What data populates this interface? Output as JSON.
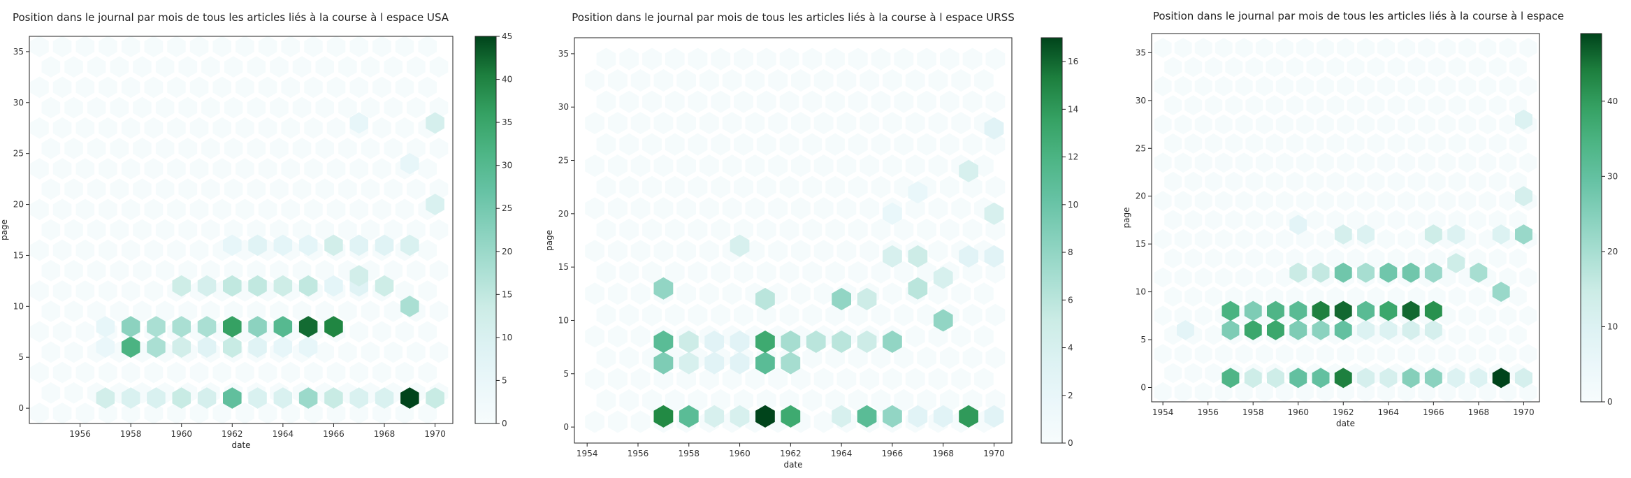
{
  "chart_data": [
    {
      "type": "heatmap",
      "title": "Position dans le journal par mois de tous les articles liés à la course à l espace USA",
      "xlabel": "date",
      "ylabel": "page",
      "xticks": [
        "1956",
        "1958",
        "1960",
        "1962",
        "1964",
        "1966",
        "1968",
        "1970"
      ],
      "yticks": [
        "0",
        "5",
        "10",
        "15",
        "20",
        "25",
        "30",
        "35"
      ],
      "xlim": [
        1954.0,
        1970.7
      ],
      "ylim": [
        -1.5,
        36.5
      ],
      "colorbar": {
        "ticks": [
          "0",
          "5",
          "10",
          "15",
          "20",
          "25",
          "30",
          "35",
          "40",
          "45"
        ],
        "min": 0,
        "max": 45
      },
      "cells": [
        [
          1969,
          1,
          45
        ],
        [
          1962,
          1,
          28
        ],
        [
          1965,
          1,
          20
        ],
        [
          1966,
          1,
          14
        ],
        [
          1960,
          1,
          14
        ],
        [
          1970,
          1,
          14
        ],
        [
          1957,
          1,
          12
        ],
        [
          1958,
          1,
          10
        ],
        [
          1959,
          1,
          10
        ],
        [
          1961,
          1,
          11
        ],
        [
          1963,
          1,
          10
        ],
        [
          1964,
          1,
          10
        ],
        [
          1967,
          1,
          10
        ],
        [
          1968,
          1,
          10
        ],
        [
          1958,
          6,
          32
        ],
        [
          1959,
          6,
          18
        ],
        [
          1960,
          6,
          12
        ],
        [
          1962,
          6,
          14
        ],
        [
          1961,
          6,
          8
        ],
        [
          1963,
          6,
          8
        ],
        [
          1964,
          6,
          6
        ],
        [
          1965,
          6,
          6
        ],
        [
          1957,
          6,
          5
        ],
        [
          1958,
          8,
          22
        ],
        [
          1959,
          8,
          18
        ],
        [
          1960,
          8,
          18
        ],
        [
          1961,
          8,
          18
        ],
        [
          1962,
          8,
          36
        ],
        [
          1963,
          8,
          22
        ],
        [
          1964,
          8,
          30
        ],
        [
          1965,
          8,
          42
        ],
        [
          1966,
          8,
          40
        ],
        [
          1957,
          8,
          6
        ],
        [
          1962,
          12,
          15
        ],
        [
          1963,
          12,
          15
        ],
        [
          1964,
          12,
          13
        ],
        [
          1965,
          12,
          15
        ],
        [
          1960,
          12,
          13
        ],
        [
          1961,
          12,
          11
        ],
        [
          1968,
          12,
          13
        ],
        [
          1966,
          12,
          7
        ],
        [
          1967,
          12,
          8
        ],
        [
          1969,
          10,
          18
        ],
        [
          1967,
          13,
          12
        ],
        [
          1969,
          16,
          10
        ],
        [
          1966,
          16,
          12
        ],
        [
          1967,
          16,
          8
        ],
        [
          1968,
          16,
          8
        ],
        [
          1963,
          16,
          8
        ],
        [
          1964,
          16,
          7
        ],
        [
          1965,
          16,
          7
        ],
        [
          1962,
          16,
          6
        ],
        [
          1970,
          20,
          10
        ],
        [
          1970,
          28,
          11
        ],
        [
          1969,
          24,
          6
        ],
        [
          1967,
          28,
          6
        ]
      ]
    },
    {
      "type": "heatmap",
      "title": "Position dans le journal par mois de tous les articles liés à la course à l espace URSS",
      "xlabel": "date",
      "ylabel": "page",
      "xticks": [
        "1954",
        "1956",
        "1958",
        "1960",
        "1962",
        "1964",
        "1966",
        "1968",
        "1970"
      ],
      "yticks": [
        "0",
        "5",
        "10",
        "15",
        "20",
        "25",
        "30",
        "35"
      ],
      "xlim": [
        1953.5,
        1970.7
      ],
      "ylim": [
        -1.5,
        36.5
      ],
      "colorbar": {
        "ticks": [
          "0",
          "2",
          "4",
          "6",
          "8",
          "10",
          "12",
          "14",
          "16"
        ],
        "min": 0,
        "max": 17
      },
      "cells": [
        [
          1957,
          1,
          15
        ],
        [
          1958,
          1,
          11
        ],
        [
          1961,
          1,
          17
        ],
        [
          1962,
          1,
          13
        ],
        [
          1965,
          1,
          11
        ],
        [
          1969,
          1,
          14
        ],
        [
          1966,
          1,
          8
        ],
        [
          1959,
          1,
          4
        ],
        [
          1960,
          1,
          4
        ],
        [
          1964,
          1,
          4
        ],
        [
          1967,
          1,
          3
        ],
        [
          1968,
          1,
          3
        ],
        [
          1970,
          1,
          3
        ],
        [
          1957,
          6,
          9
        ],
        [
          1958,
          6,
          4
        ],
        [
          1959,
          6,
          3
        ],
        [
          1961,
          6,
          11
        ],
        [
          1962,
          6,
          7
        ],
        [
          1960,
          6,
          3
        ],
        [
          1957,
          8,
          11
        ],
        [
          1958,
          8,
          5
        ],
        [
          1961,
          8,
          13
        ],
        [
          1962,
          8,
          7
        ],
        [
          1963,
          8,
          6
        ],
        [
          1964,
          8,
          6
        ],
        [
          1965,
          8,
          5
        ],
        [
          1966,
          8,
          8
        ],
        [
          1960,
          8,
          3
        ],
        [
          1959,
          8,
          3
        ],
        [
          1957,
          13,
          8
        ],
        [
          1961,
          12,
          6
        ],
        [
          1964,
          12,
          8
        ],
        [
          1965,
          12,
          5
        ],
        [
          1968,
          10,
          8
        ],
        [
          1967,
          13,
          6
        ],
        [
          1968,
          14,
          4
        ],
        [
          1967,
          16,
          5
        ],
        [
          1966,
          16,
          4
        ],
        [
          1960,
          17,
          4
        ],
        [
          1969,
          16,
          3
        ],
        [
          1970,
          16,
          3
        ],
        [
          1970,
          20,
          4
        ],
        [
          1969,
          24,
          4
        ],
        [
          1970,
          28,
          3
        ],
        [
          1966,
          20,
          2
        ],
        [
          1967,
          22,
          2
        ]
      ]
    },
    {
      "type": "heatmap",
      "title": "Position dans le journal par mois de tous les articles liés à la course à l espace",
      "xlabel": "date",
      "ylabel": "page",
      "xticks": [
        "1954",
        "1956",
        "1958",
        "1960",
        "1962",
        "1964",
        "1966",
        "1968",
        "1970"
      ],
      "yticks": [
        "0",
        "5",
        "10",
        "15",
        "20",
        "25",
        "30",
        "35"
      ],
      "xlim": [
        1953.5,
        1970.7
      ],
      "ylim": [
        -1.5,
        37.0
      ],
      "colorbar": {
        "ticks": [
          "0",
          "10",
          "20",
          "30",
          "40"
        ],
        "min": 0,
        "max": 49
      },
      "cells": [
        [
          1969,
          1,
          49
        ],
        [
          1962,
          1,
          44
        ],
        [
          1957,
          1,
          34
        ],
        [
          1960,
          1,
          30
        ],
        [
          1961,
          1,
          30
        ],
        [
          1965,
          1,
          25
        ],
        [
          1966,
          1,
          24
        ],
        [
          1958,
          1,
          14
        ],
        [
          1959,
          1,
          14
        ],
        [
          1963,
          1,
          12
        ],
        [
          1964,
          1,
          12
        ],
        [
          1967,
          1,
          10
        ],
        [
          1968,
          1,
          10
        ],
        [
          1970,
          1,
          12
        ],
        [
          1957,
          6,
          26
        ],
        [
          1958,
          6,
          38
        ],
        [
          1959,
          6,
          38
        ],
        [
          1960,
          6,
          26
        ],
        [
          1961,
          6,
          24
        ],
        [
          1962,
          6,
          30
        ],
        [
          1963,
          6,
          10
        ],
        [
          1964,
          6,
          10
        ],
        [
          1965,
          6,
          12
        ],
        [
          1966,
          6,
          12
        ],
        [
          1955,
          6,
          8
        ],
        [
          1957,
          8,
          35
        ],
        [
          1958,
          8,
          26
        ],
        [
          1959,
          8,
          34
        ],
        [
          1960,
          8,
          32
        ],
        [
          1961,
          8,
          44
        ],
        [
          1962,
          8,
          46
        ],
        [
          1963,
          8,
          32
        ],
        [
          1964,
          8,
          38
        ],
        [
          1965,
          8,
          46
        ],
        [
          1966,
          8,
          42
        ],
        [
          1960,
          12,
          15
        ],
        [
          1961,
          12,
          16
        ],
        [
          1962,
          12,
          28
        ],
        [
          1963,
          12,
          20
        ],
        [
          1964,
          12,
          28
        ],
        [
          1965,
          12,
          28
        ],
        [
          1966,
          12,
          22
        ],
        [
          1968,
          12,
          20
        ],
        [
          1969,
          10,
          22
        ],
        [
          1967,
          13,
          14
        ],
        [
          1970,
          16,
          22
        ],
        [
          1966,
          16,
          14
        ],
        [
          1967,
          16,
          10
        ],
        [
          1969,
          16,
          10
        ],
        [
          1962,
          16,
          12
        ],
        [
          1963,
          16,
          10
        ],
        [
          1960,
          17,
          8
        ],
        [
          1970,
          20,
          12
        ],
        [
          1970,
          28,
          10
        ]
      ]
    }
  ]
}
